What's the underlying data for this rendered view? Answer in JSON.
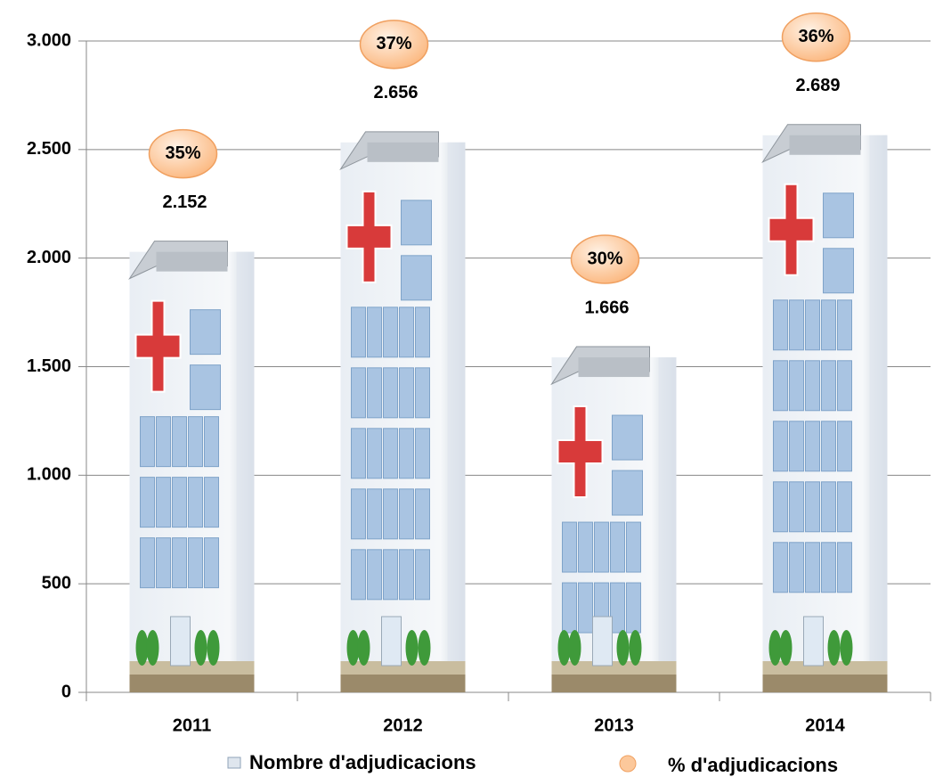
{
  "chart_data": {
    "type": "bar",
    "categories": [
      "2011",
      "2012",
      "2013",
      "2014"
    ],
    "series": [
      {
        "name": "Nombre d'adjudicacions",
        "color": "#dfe6ee",
        "values": [
          2152,
          2656,
          1666,
          2689
        ],
        "value_labels": [
          "2.152",
          "2.656",
          "1.666",
          "2.689"
        ]
      },
      {
        "name": "% d'adjudicacions",
        "color": "#fcc89b",
        "values": [
          35,
          37,
          30,
          36
        ],
        "value_labels": [
          "35%",
          "37%",
          "30%",
          "36%"
        ]
      }
    ],
    "ylim": [
      0,
      3000
    ],
    "yticks": [
      0,
      500,
      {
        "value": 1000,
        "label": "1.000"
      },
      {
        "value": 1500,
        "label": "1.500"
      },
      {
        "value": 2000,
        "label": "2.000"
      },
      {
        "value": 2500,
        "label": "2.500"
      },
      {
        "value": 3000,
        "label": "3.000"
      }
    ],
    "grid": true
  }
}
